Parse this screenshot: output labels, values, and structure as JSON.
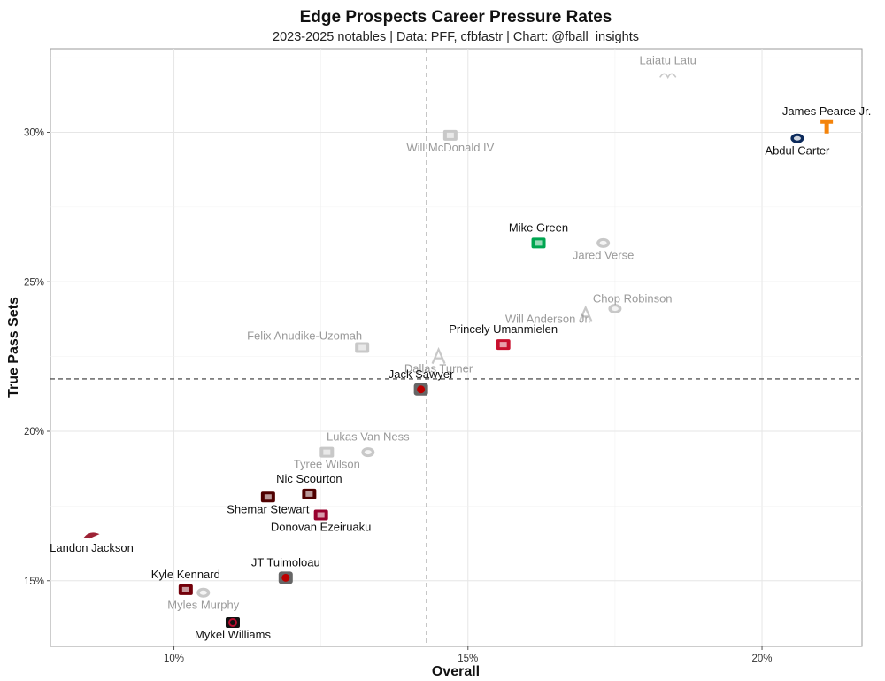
{
  "chart_data": {
    "type": "scatter",
    "title": "Edge Prospects Career Pressure Rates",
    "subtitle": "2023-2025 notables | Data: PFF, cfbfastr | Chart: @fball_insights",
    "xlabel": "Overall",
    "ylabel": "True Pass Sets",
    "xlim": [
      7.9,
      21.7
    ],
    "ylim": [
      12.8,
      32.8
    ],
    "x_ticks": [
      10,
      15,
      20
    ],
    "x_tick_labels": [
      "10%",
      "15%",
      "20%"
    ],
    "y_ticks": [
      15,
      20,
      25,
      30
    ],
    "y_tick_labels": [
      "15%",
      "20%",
      "25%",
      "30%"
    ],
    "reference_lines": {
      "x": 14.3,
      "y": 21.75
    },
    "grid": true,
    "points": [
      {
        "name": "Laiatu Latu",
        "x": 18.4,
        "y": 31.9,
        "school_mark": "UCLA",
        "muted": true,
        "color": "#c8c8c8",
        "label_pos": "above"
      },
      {
        "name": "James Pearce Jr.",
        "x": 21.1,
        "y": 30.2,
        "school_mark": "T",
        "muted": false,
        "color": "#f4830a",
        "label_pos": "above"
      },
      {
        "name": "Abdul Carter",
        "x": 20.6,
        "y": 29.8,
        "school_mark": "PSU",
        "muted": false,
        "color": "#0c2a5b",
        "label_pos": "below"
      },
      {
        "name": "Will McDonald IV",
        "x": 14.7,
        "y": 29.9,
        "school_mark": "ISU",
        "muted": true,
        "color": "#c8c8c8",
        "label_pos": "below"
      },
      {
        "name": "Mike Green",
        "x": 16.2,
        "y": 26.3,
        "school_mark": "MU",
        "muted": false,
        "color": "#00a651",
        "label_pos": "above"
      },
      {
        "name": "Jared Verse",
        "x": 17.3,
        "y": 26.3,
        "school_mark": "FSU",
        "muted": true,
        "color": "#c8c8c8",
        "label_pos": "below"
      },
      {
        "name": "Chop Robinson",
        "x": 17.5,
        "y": 24.1,
        "school_mark": "PSU",
        "muted": true,
        "color": "#c8c8c8",
        "label_pos": "above-right"
      },
      {
        "name": "Will Anderson Jr.",
        "x": 17.0,
        "y": 23.9,
        "school_mark": "A",
        "muted": true,
        "color": "#c8c8c8",
        "label_pos": "below-left"
      },
      {
        "name": "Princely Umanmielen",
        "x": 15.6,
        "y": 22.9,
        "school_mark": "Miss",
        "muted": false,
        "color": "#c8102e",
        "label_pos": "above"
      },
      {
        "name": "Felix Anudike-Uzomah",
        "x": 13.2,
        "y": 22.8,
        "school_mark": "KSU",
        "muted": true,
        "color": "#c8c8c8",
        "label_pos": "above-left"
      },
      {
        "name": "Dallas Turner",
        "x": 14.5,
        "y": 22.5,
        "school_mark": "A",
        "muted": true,
        "color": "#c8c8c8",
        "label_pos": "below"
      },
      {
        "name": "Jack Sawyer",
        "x": 14.2,
        "y": 21.4,
        "school_mark": "OSU",
        "muted": false,
        "color": "#bb0000",
        "label_pos": "above"
      },
      {
        "name": "Lukas Van Ness",
        "x": 13.3,
        "y": 19.3,
        "school_mark": "IOWA",
        "muted": true,
        "color": "#c8c8c8",
        "label_pos": "above"
      },
      {
        "name": "Tyree Wilson",
        "x": 12.6,
        "y": 19.3,
        "school_mark": "TT",
        "muted": true,
        "color": "#c8c8c8",
        "label_pos": "below"
      },
      {
        "name": "Nic Scourton",
        "x": 12.3,
        "y": 17.9,
        "school_mark": "ATM",
        "muted": false,
        "color": "#500000",
        "label_pos": "above"
      },
      {
        "name": "Shemar Stewart",
        "x": 11.6,
        "y": 17.8,
        "school_mark": "ATM",
        "muted": false,
        "color": "#500000",
        "label_pos": "below"
      },
      {
        "name": "Donovan Ezeiruaku",
        "x": 12.5,
        "y": 17.2,
        "school_mark": "BC",
        "muted": false,
        "color": "#98002e",
        "label_pos": "below"
      },
      {
        "name": "Landon Jackson",
        "x": 8.6,
        "y": 16.5,
        "school_mark": "ARK",
        "muted": false,
        "color": "#9d2235",
        "label_pos": "below"
      },
      {
        "name": "JT Tuimoloau",
        "x": 11.9,
        "y": 15.1,
        "school_mark": "OSU",
        "muted": false,
        "color": "#bb0000",
        "label_pos": "above"
      },
      {
        "name": "Kyle Kennard",
        "x": 10.2,
        "y": 14.7,
        "school_mark": "SC",
        "muted": false,
        "color": "#73000a",
        "label_pos": "above"
      },
      {
        "name": "Myles Murphy",
        "x": 10.5,
        "y": 14.6,
        "school_mark": "CLEM",
        "muted": true,
        "color": "#c8c8c8",
        "label_pos": "below"
      },
      {
        "name": "Mykel Williams",
        "x": 11.0,
        "y": 13.6,
        "school_mark": "G",
        "muted": false,
        "color": "#ba0c2f",
        "label_pos": "below"
      }
    ]
  }
}
